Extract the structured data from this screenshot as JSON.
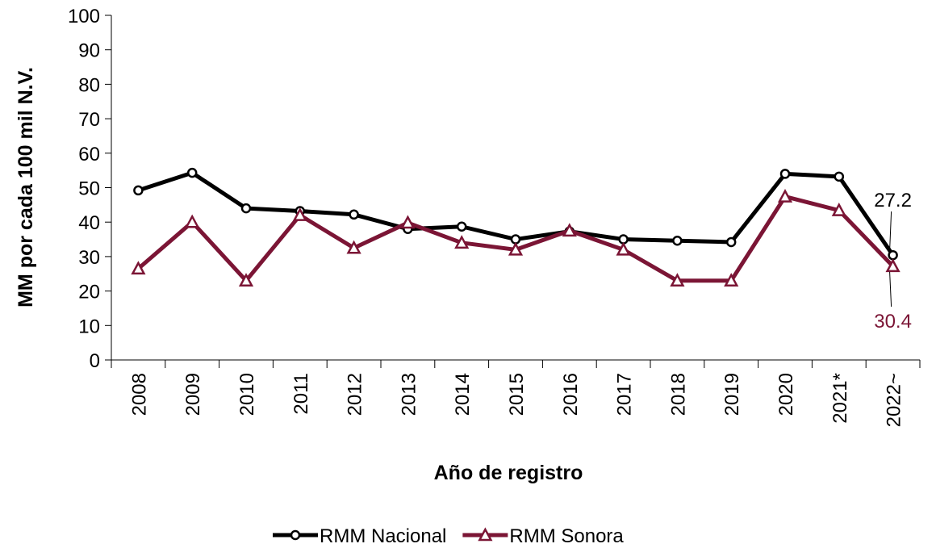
{
  "chart_data": {
    "type": "line",
    "x_label": "Año de registro",
    "y_label": "MM por cada 100 mil N.V.",
    "categories": [
      "2008",
      "2009",
      "2010",
      "2011",
      "2012",
      "2013",
      "2014",
      "2015",
      "2016",
      "2017",
      "2018",
      "2019",
      "2020",
      "2021*",
      "2022~"
    ],
    "series": [
      {
        "name": "RMM Nacional",
        "color": "#000000",
        "marker": "circle",
        "values": [
          49.2,
          54.3,
          44.0,
          43.2,
          42.2,
          38.0,
          38.7,
          35.0,
          37.3,
          35.0,
          34.6,
          34.2,
          54.0,
          53.2,
          30.4
        ]
      },
      {
        "name": "RMM Sonora",
        "color": "#7b1535",
        "marker": "triangle",
        "values": [
          26.5,
          40.0,
          23.0,
          42.0,
          32.5,
          39.8,
          34.0,
          32.0,
          37.5,
          32.0,
          23.0,
          23.0,
          47.4,
          43.4,
          27.2
        ]
      }
    ],
    "annotations": [
      {
        "text": "27.2",
        "color": "#000000"
      },
      {
        "text": "30.4",
        "color": "#7b1535"
      }
    ],
    "ylim": [
      0,
      100
    ],
    "yticks": [
      0,
      10,
      20,
      30,
      40,
      50,
      60,
      70,
      80,
      90,
      100
    ],
    "legend": "bottom"
  }
}
